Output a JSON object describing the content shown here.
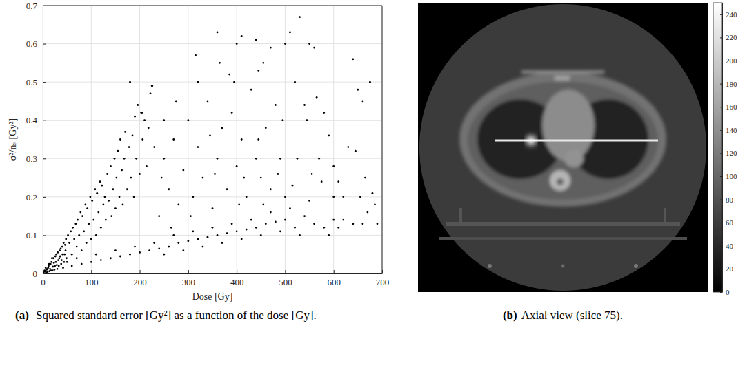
{
  "chart_data": [
    {
      "type": "scatter",
      "caption_label": "(a)",
      "caption": "Squared standard error [Gy²] as a function of the dose [Gy].",
      "xlabel": "Dose [Gy]",
      "ylabel": "σ²/nₛ [Gy²]",
      "xlim": [
        0,
        700
      ],
      "ylim": [
        0,
        0.7
      ],
      "xticks": [
        0,
        100,
        200,
        300,
        400,
        500,
        600,
        700
      ],
      "yticks": [
        0,
        0.1,
        0.2,
        0.3,
        0.4,
        0.5,
        0.6,
        0.7
      ],
      "grid": true,
      "marker": "dot",
      "color": "#000000",
      "x": [
        2,
        5,
        8,
        10,
        12,
        15,
        18,
        20,
        22,
        25,
        28,
        30,
        32,
        35,
        38,
        40,
        42,
        45,
        48,
        50,
        6,
        14,
        24,
        33,
        44,
        16,
        36,
        27,
        46,
        52,
        55,
        58,
        60,
        62,
        65,
        68,
        70,
        72,
        75,
        78,
        80,
        82,
        85,
        88,
        90,
        92,
        95,
        98,
        100,
        102,
        105,
        108,
        110,
        112,
        115,
        118,
        120,
        122,
        125,
        128,
        130,
        133,
        136,
        140,
        142,
        145,
        148,
        150,
        152,
        155,
        158,
        160,
        163,
        165,
        168,
        170,
        174,
        178,
        180,
        182,
        185,
        188,
        190,
        193,
        196,
        200,
        203,
        206,
        210,
        214,
        218,
        222,
        226,
        230,
        60,
        80,
        100,
        120,
        140,
        160,
        180,
        200,
        220,
        240,
        260,
        280,
        300,
        320,
        340,
        360,
        380,
        400,
        420,
        440,
        460,
        480,
        500,
        520,
        540,
        560,
        580,
        600,
        590,
        610,
        70,
        110,
        150,
        190,
        230,
        270,
        310,
        350,
        390,
        430,
        470,
        510,
        550,
        250,
        290,
        330,
        370,
        410,
        450,
        490,
        530,
        240,
        250,
        260,
        270,
        280,
        290,
        300,
        310,
        320,
        330,
        340,
        350,
        360,
        370,
        380,
        390,
        400,
        410,
        420,
        430,
        440,
        450,
        460,
        470,
        480,
        490,
        500,
        250,
        275,
        320,
        345,
        395,
        415,
        455,
        485,
        245,
        265,
        305,
        355,
        405,
        445,
        495,
        315,
        360,
        400,
        410,
        440,
        445,
        470,
        500,
        510,
        530,
        455,
        520,
        385,
        225,
        205,
        365,
        540,
        545,
        550,
        560,
        565,
        570,
        580,
        590,
        600,
        610,
        620,
        630,
        640,
        645,
        650,
        655,
        660,
        665,
        670,
        675,
        680,
        685,
        690,
        640,
        660,
        620,
        600,
        575,
        555,
        525,
        515,
        3,
        7,
        11,
        13,
        17,
        19,
        21,
        23,
        26,
        29,
        31,
        34,
        37,
        39,
        41,
        43,
        47,
        49,
        9,
        4
      ],
      "values": [
        0.002,
        0.005,
        0.01,
        0.004,
        0.02,
        0.012,
        0.03,
        0.008,
        0.04,
        0.02,
        0.05,
        0.012,
        0.035,
        0.06,
        0.025,
        0.07,
        0.015,
        0.05,
        0.09,
        0.03,
        0.015,
        0.006,
        0.01,
        0.02,
        0.03,
        0.025,
        0.045,
        0.03,
        0.075,
        0.1,
        0.08,
        0.11,
        0.05,
        0.12,
        0.09,
        0.13,
        0.07,
        0.14,
        0.1,
        0.16,
        0.06,
        0.15,
        0.11,
        0.18,
        0.08,
        0.17,
        0.13,
        0.2,
        0.09,
        0.19,
        0.14,
        0.22,
        0.1,
        0.21,
        0.16,
        0.24,
        0.12,
        0.23,
        0.18,
        0.2,
        0.14,
        0.26,
        0.19,
        0.28,
        0.15,
        0.22,
        0.3,
        0.17,
        0.25,
        0.32,
        0.2,
        0.35,
        0.27,
        0.18,
        0.3,
        0.37,
        0.22,
        0.33,
        0.5,
        0.25,
        0.36,
        0.2,
        0.41,
        0.3,
        0.44,
        0.26,
        0.42,
        0.35,
        0.4,
        0.28,
        0.38,
        0.47,
        0.49,
        0.33,
        0.02,
        0.025,
        0.03,
        0.035,
        0.04,
        0.045,
        0.05,
        0.055,
        0.06,
        0.065,
        0.07,
        0.08,
        0.085,
        0.09,
        0.095,
        0.1,
        0.105,
        0.11,
        0.115,
        0.12,
        0.13,
        0.135,
        0.14,
        0.12,
        0.15,
        0.13,
        0.12,
        0.14,
        0.1,
        0.12,
        0.04,
        0.05,
        0.06,
        0.07,
        0.08,
        0.1,
        0.11,
        0.12,
        0.13,
        0.14,
        0.16,
        0.17,
        0.19,
        0.05,
        0.06,
        0.07,
        0.08,
        0.09,
        0.1,
        0.11,
        0.1,
        0.15,
        0.3,
        0.22,
        0.35,
        0.18,
        0.27,
        0.4,
        0.2,
        0.33,
        0.25,
        0.45,
        0.17,
        0.3,
        0.38,
        0.22,
        0.42,
        0.28,
        0.35,
        0.2,
        0.48,
        0.3,
        0.25,
        0.38,
        0.22,
        0.44,
        0.3,
        0.2,
        0.4,
        0.45,
        0.5,
        0.36,
        0.5,
        0.25,
        0.18,
        0.26,
        0.25,
        0.12,
        0.15,
        0.26,
        0.18,
        0.35,
        0.4,
        0.57,
        0.63,
        0.6,
        0.62,
        0.61,
        0.53,
        0.59,
        0.6,
        0.63,
        0.67,
        0.55,
        0.5,
        0.52,
        0.49,
        0.42,
        0.55,
        0.44,
        0.4,
        0.6,
        0.59,
        0.46,
        0.3,
        0.42,
        0.36,
        0.28,
        0.24,
        0.2,
        0.33,
        0.56,
        0.32,
        0.48,
        0.2,
        0.45,
        0.25,
        0.16,
        0.5,
        0.21,
        0.18,
        0.13,
        0.13,
        0.13,
        0.14,
        0.2,
        0.24,
        0.26,
        0.3,
        0.23,
        0.006,
        0.003,
        0.015,
        0.025,
        0.008,
        0.04,
        0.018,
        0.028,
        0.045,
        0.022,
        0.055,
        0.04,
        0.065,
        0.035,
        0.05,
        0.08,
        0.06,
        0.04,
        0.012,
        0.008
      ]
    },
    {
      "type": "image",
      "caption_label": "(b)",
      "caption": "Axial view (slice 75).",
      "color_range": [
        0,
        250
      ],
      "color_ticks": [
        0,
        20,
        40,
        60,
        80,
        100,
        120,
        140,
        160,
        180,
        200,
        220,
        240
      ]
    }
  ]
}
